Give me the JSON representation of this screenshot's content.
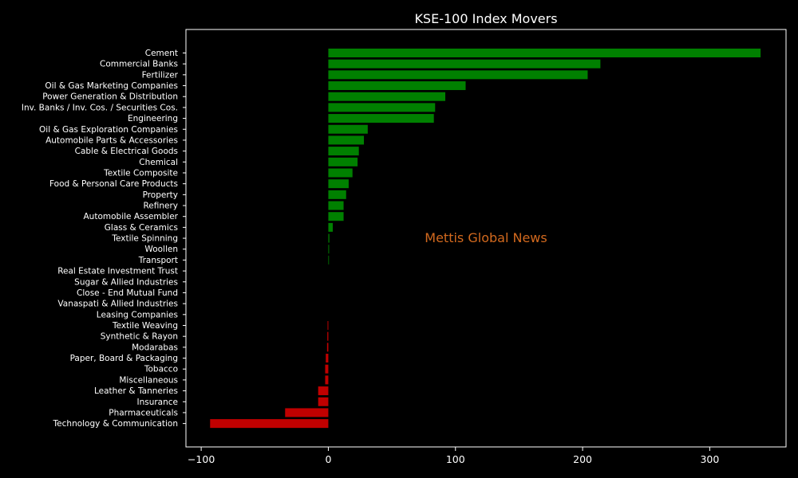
{
  "chart_data": {
    "type": "bar",
    "orientation": "horizontal",
    "title": "KSE-100 Index Movers",
    "watermark": "Mettis Global News",
    "xlabel": "",
    "ylabel": "",
    "xlim": [
      -112,
      360
    ],
    "xticks": [
      -100,
      0,
      100,
      200,
      300
    ],
    "xtick_labels": [
      "−100",
      "0",
      "100",
      "200",
      "300"
    ],
    "grid": false,
    "legend": "none",
    "colors": {
      "positive": "#008000",
      "negative": "#c00000",
      "background": "#000000",
      "text": "#ffffff",
      "watermark": "#d2691e"
    },
    "categories": [
      "Cement",
      "Commercial Banks",
      "Fertilizer",
      "Oil & Gas Marketing Companies",
      "Power Generation & Distribution",
      "Inv. Banks / Inv. Cos. / Securities Cos.",
      "Engineering",
      "Oil & Gas Exploration Companies",
      "Automobile Parts & Accessories",
      "Cable & Electrical Goods",
      "Chemical",
      "Textile Composite",
      "Food & Personal Care Products",
      "Property",
      "Refinery",
      "Automobile Assembler",
      "Glass & Ceramics",
      "Textile Spinning",
      "Woollen",
      "Transport",
      "Real Estate Investment Trust",
      "Sugar & Allied Industries",
      "Close - End Mutual Fund",
      "Vanaspati & Allied Industries",
      "Leasing Companies",
      "Textile Weaving",
      "Synthetic & Rayon",
      "Modarabas",
      "Paper, Board & Packaging",
      "Tobacco",
      "Miscellaneous",
      "Leather & Tanneries",
      "Insurance",
      "Pharmaceuticals",
      "Technology & Communication"
    ],
    "values": [
      340,
      214,
      204,
      108,
      92,
      84,
      83,
      31,
      28,
      24,
      23,
      19,
      16,
      14,
      12,
      12,
      3.5,
      0.8,
      0.6,
      0.5,
      0,
      0,
      0,
      0,
      0,
      -0.6,
      -0.8,
      -1,
      -2,
      -2.5,
      -2.5,
      -8,
      -8,
      -34,
      -93
    ]
  }
}
